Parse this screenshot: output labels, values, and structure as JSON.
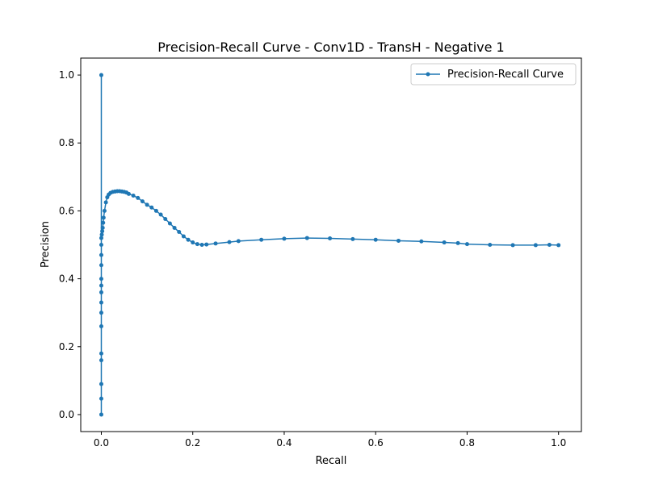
{
  "chart_data": {
    "type": "line",
    "title": "Precision-Recall Curve - Conv1D - TransH - Negative 1",
    "xlabel": "Recall",
    "ylabel": "Precision",
    "xlim": [
      -0.045,
      1.05
    ],
    "ylim": [
      -0.05,
      1.05
    ],
    "x_ticks": [
      0.0,
      0.2,
      0.4,
      0.6,
      0.8,
      1.0
    ],
    "x_tick_labels": [
      "0.0",
      "0.2",
      "0.4",
      "0.6",
      "0.8",
      "1.0"
    ],
    "y_ticks": [
      0.0,
      0.2,
      0.4,
      0.6,
      0.8,
      1.0
    ],
    "y_tick_labels": [
      "0.0",
      "0.2",
      "0.4",
      "0.6",
      "0.8",
      "1.0"
    ],
    "grid": false,
    "legend_position": "upper right",
    "series": [
      {
        "name": "Precision-Recall Curve",
        "color": "#1f77b4",
        "marker": "circle",
        "x": [
          0,
          0,
          0,
          0,
          0,
          0,
          0,
          0,
          0,
          0,
          0,
          0,
          0,
          0,
          0,
          0,
          0.001,
          0.002,
          0.003,
          0.004,
          0.005,
          0.007,
          0.01,
          0.013,
          0.016,
          0.02,
          0.025,
          0.03,
          0.035,
          0.04,
          0.045,
          0.05,
          0.055,
          0.06,
          0.07,
          0.08,
          0.09,
          0.1,
          0.11,
          0.12,
          0.13,
          0.14,
          0.15,
          0.16,
          0.17,
          0.18,
          0.19,
          0.2,
          0.21,
          0.22,
          0.23,
          0.25,
          0.28,
          0.3,
          0.35,
          0.4,
          0.45,
          0.5,
          0.55,
          0.6,
          0.65,
          0.7,
          0.75,
          0.78,
          0.8,
          0.85,
          0.9,
          0.95,
          0.98,
          1.0
        ],
        "y": [
          1.0,
          0.0,
          0.047,
          0.09,
          0.16,
          0.18,
          0.26,
          0.3,
          0.33,
          0.36,
          0.38,
          0.4,
          0.44,
          0.47,
          0.5,
          0.52,
          0.53,
          0.54,
          0.55,
          0.565,
          0.58,
          0.6,
          0.625,
          0.64,
          0.648,
          0.653,
          0.656,
          0.657,
          0.658,
          0.658,
          0.657,
          0.656,
          0.654,
          0.65,
          0.645,
          0.638,
          0.628,
          0.618,
          0.61,
          0.6,
          0.589,
          0.576,
          0.563,
          0.55,
          0.538,
          0.525,
          0.515,
          0.507,
          0.502,
          0.5,
          0.501,
          0.504,
          0.508,
          0.511,
          0.515,
          0.518,
          0.52,
          0.519,
          0.517,
          0.515,
          0.512,
          0.51,
          0.507,
          0.505,
          0.502,
          0.5,
          0.499,
          0.499,
          0.5,
          0.499
        ]
      }
    ]
  }
}
